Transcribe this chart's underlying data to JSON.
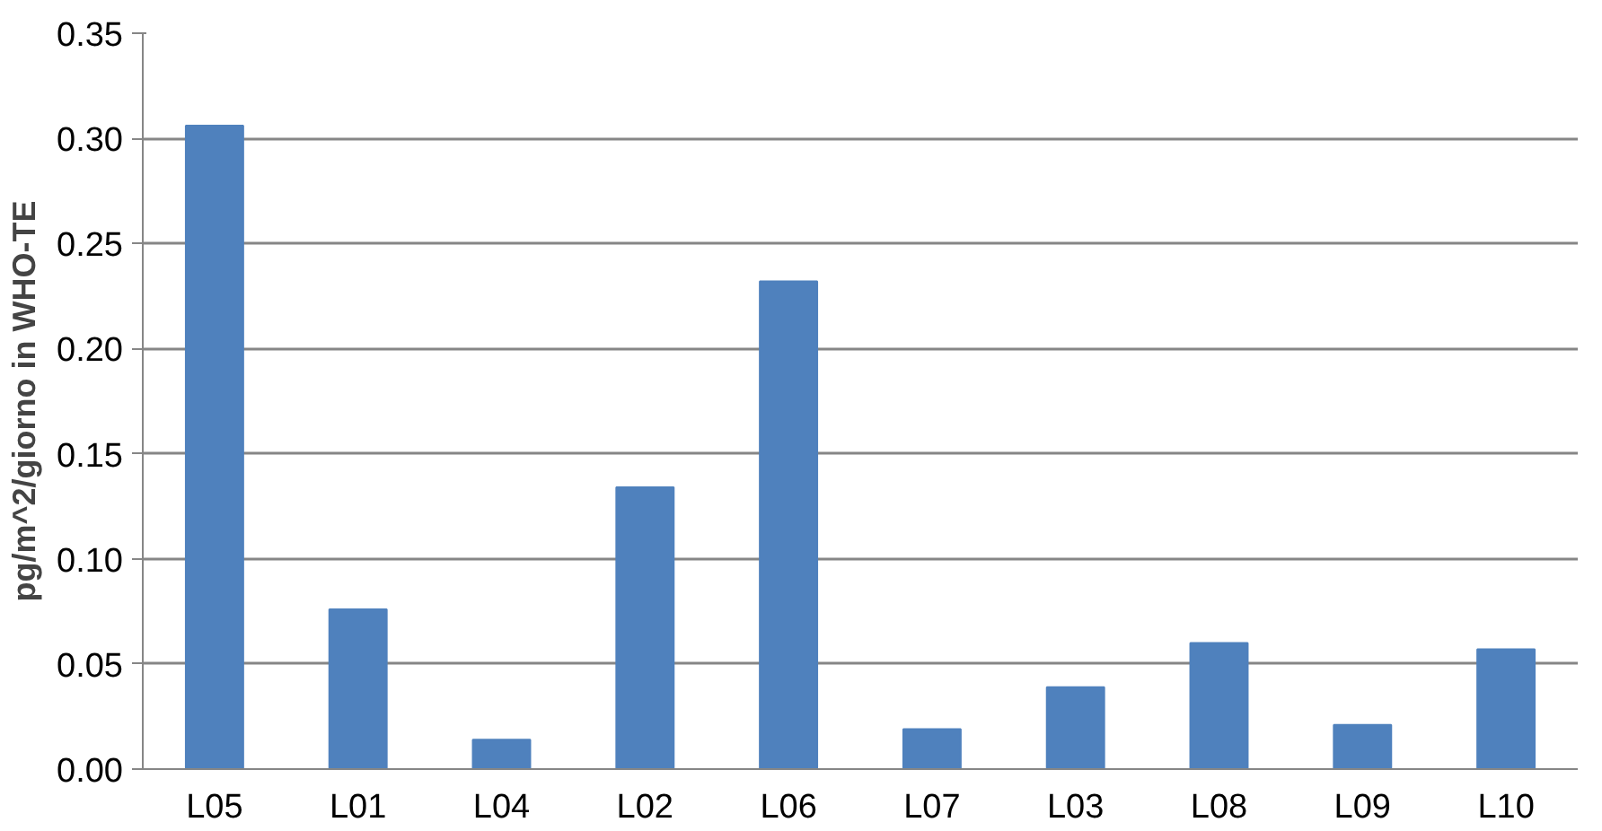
{
  "chart_data": {
    "type": "bar",
    "ylabel": "pg/m^2/giorno in WHO-TE",
    "categories": [
      "L05",
      "L01",
      "L04",
      "L02",
      "L06",
      "L07",
      "L03",
      "L08",
      "L09",
      "L10"
    ],
    "values": [
      0.306,
      0.076,
      0.014,
      0.134,
      0.232,
      0.019,
      0.039,
      0.06,
      0.021,
      0.057
    ],
    "color": "#4f81bd",
    "ylim": [
      0,
      0.35
    ],
    "yticks": [
      {
        "value": 0,
        "label": "0.00"
      },
      {
        "value": 0.05,
        "label": "0.05"
      },
      {
        "value": 0.1,
        "label": "0.10"
      },
      {
        "value": 0.15,
        "label": "0.15"
      },
      {
        "value": 0.2,
        "label": "0.20"
      },
      {
        "value": 0.25,
        "label": "0.25"
      },
      {
        "value": 0.3,
        "label": "0.30"
      },
      {
        "value": 0.35,
        "label": "0.35"
      }
    ],
    "grid": "y"
  }
}
